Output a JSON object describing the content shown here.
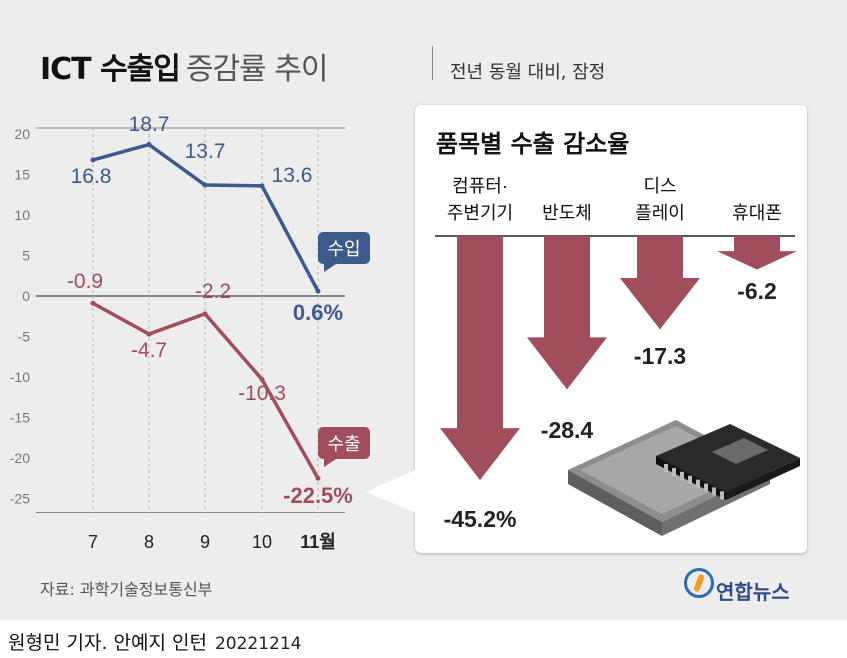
{
  "header": {
    "title_bold": "ICT 수출입",
    "title_light": "증감률 추이",
    "subtitle": "전년 동월 대비, 잠정"
  },
  "chart_data": [
    {
      "type": "line",
      "x": [
        "7",
        "8",
        "9",
        "10",
        "11월"
      ],
      "ylim": [
        -25,
        20
      ],
      "yticks": [
        "20",
        "15",
        "10",
        "5",
        "0",
        "-5",
        "-10",
        "-15",
        "-20",
        "-25"
      ],
      "series": [
        {
          "name": "수입",
          "values": [
            16.8,
            18.7,
            13.7,
            13.6,
            0.6
          ],
          "labels": [
            "16.8",
            "18.7",
            "13.7",
            "13.6",
            "0.6%"
          ],
          "color": "#3c5a8c"
        },
        {
          "name": "수출",
          "values": [
            -0.9,
            -4.7,
            -2.2,
            -10.3,
            -22.5
          ],
          "labels": [
            "-0.9",
            "-4.7",
            "-2.2",
            "-10.3",
            "-22.5%"
          ],
          "color": "#a14e5c"
        }
      ],
      "grid": true
    },
    {
      "type": "bar",
      "title": "품목별 수출 감소율",
      "categories": [
        [
          "컴퓨터·",
          "주변기기"
        ],
        [
          "반도체"
        ],
        [
          "디스",
          "플레이"
        ],
        [
          "휴대폰"
        ]
      ],
      "values": [
        -45.2,
        -28.4,
        -17.3,
        -6.2
      ],
      "labels": [
        "-45.2%",
        "-28.4",
        "-17.3",
        "-6.2"
      ],
      "color": "#a14e5c"
    }
  ],
  "footer": {
    "source": "자료: 과학기술정보통신부",
    "logo": "연합뉴스",
    "credit": "원형민 기자. 안예지 인턴",
    "date": "20221214"
  }
}
